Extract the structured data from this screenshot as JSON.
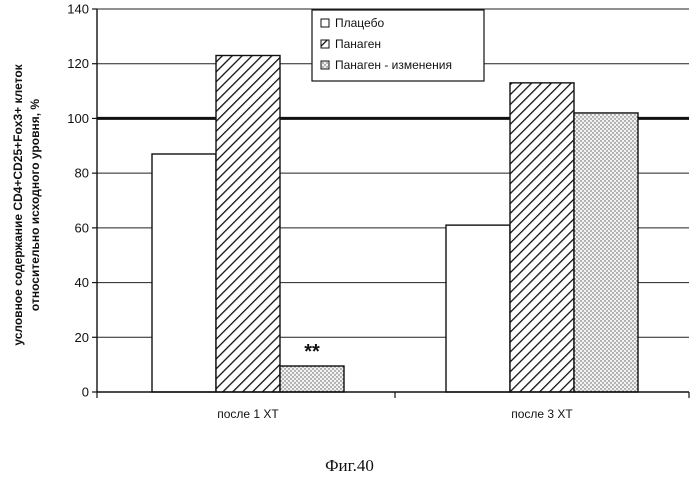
{
  "chart_data": {
    "type": "bar",
    "ylabel_lines": [
      "условное содержание CD4+CD25+Fox3+ клеток",
      "относительно исходного уровня, %"
    ],
    "xlabel": "",
    "ylim": [
      0,
      140
    ],
    "yticks": [
      0,
      20,
      40,
      60,
      80,
      100,
      120,
      140
    ],
    "grid": true,
    "reference_line": 100,
    "legend_position": "top-center",
    "categories": [
      "после 1 ХТ",
      "после 3 ХТ"
    ],
    "series": [
      {
        "name": "Плацебо",
        "values": [
          87,
          61
        ],
        "pattern": "white"
      },
      {
        "name": "Панаген",
        "values": [
          123,
          113
        ],
        "pattern": "hatched"
      },
      {
        "name": "Панаген - изменения",
        "values": [
          9.5,
          102
        ],
        "pattern": "dotted"
      }
    ],
    "annotations": [
      {
        "text": "**",
        "category_index": 0,
        "series_index": 2
      }
    ]
  },
  "caption": "Фиг.40"
}
